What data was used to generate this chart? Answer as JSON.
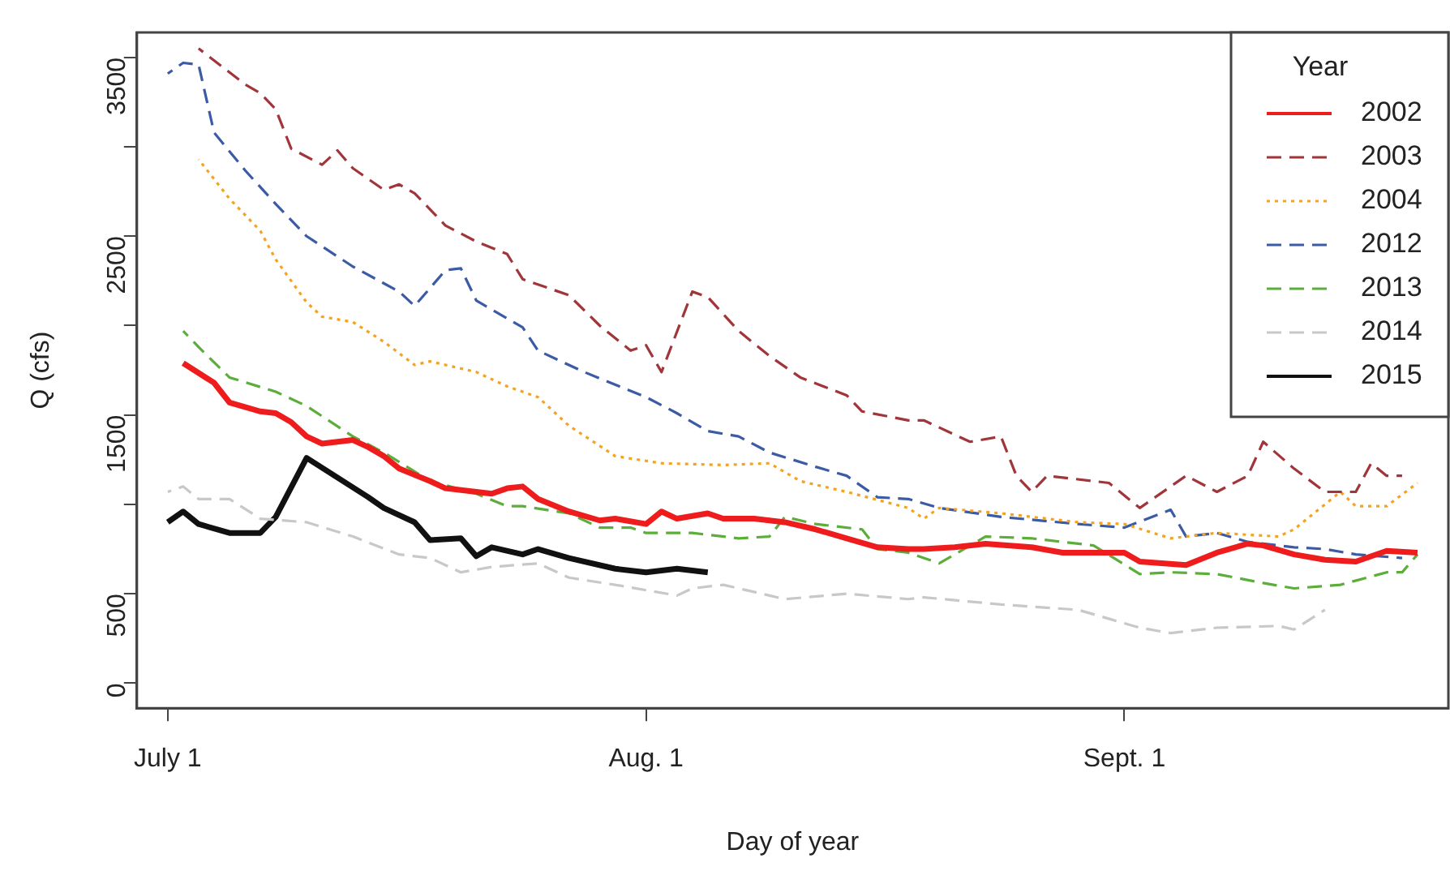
{
  "chart_data": {
    "type": "line",
    "xlabel": "Day of year",
    "ylabel": "Q (cfs)",
    "legend_title": "Year",
    "xlim": [
      "--06-29",
      "--09-22"
    ],
    "ylim": [
      -140,
      3640
    ],
    "xticks": [
      {
        "value": "--07-01",
        "label": "July 1"
      },
      {
        "value": "--08-01",
        "label": "Aug. 1"
      },
      {
        "value": "--09-01",
        "label": "Sept. 1"
      }
    ],
    "yticks": [
      0,
      500,
      {
        "value": 1000,
        "label": null
      },
      1500,
      {
        "value": 2000,
        "label": null
      },
      2500,
      {
        "value": 3000,
        "label": null
      },
      3500
    ],
    "grid": false,
    "legend": "top right",
    "marker": "none",
    "series": [
      {
        "name": "2002",
        "color": "#ee1c1c",
        "line_style": "solid",
        "x": [
          "--07-02",
          "--07-04",
          "--07-05",
          "--07-07",
          "--07-08",
          "--07-09",
          "--07-10",
          "--07-11",
          "--07-12",
          "--07-13",
          "--07-14",
          "--07-15",
          "--07-16",
          "--07-18",
          "--07-19",
          "--07-21",
          "--07-22",
          "--07-23",
          "--07-24",
          "--07-25",
          "--07-27",
          "--07-29",
          "--07-30",
          "--08-01",
          "--08-02",
          "--08-03",
          "--08-05",
          "--08-06",
          "--08-08",
          "--08-10",
          "--08-12",
          "--08-14",
          "--08-16",
          "--08-18",
          "--08-19",
          "--08-21",
          "--08-23",
          "--08-26",
          "--08-28",
          "--08-30",
          "--09-01",
          "--09-02",
          "--09-05",
          "--09-07",
          "--09-09",
          "--09-10",
          "--09-12",
          "--09-14",
          "--09-16",
          "--09-18",
          "--09-20"
        ],
        "values": [
          1790,
          1680,
          1570,
          1520,
          1510,
          1460,
          1380,
          1340,
          1350,
          1360,
          1320,
          1270,
          1200,
          1130,
          1090,
          1070,
          1060,
          1090,
          1100,
          1030,
          960,
          910,
          920,
          890,
          960,
          920,
          950,
          920,
          920,
          900,
          860,
          810,
          760,
          750,
          750,
          760,
          780,
          760,
          730,
          730,
          730,
          680,
          660,
          730,
          780,
          770,
          720,
          690,
          680,
          740,
          730
        ]
      },
      {
        "name": "2003",
        "color": "#a0353a",
        "line_style": "dashed",
        "x": [
          "--07-03",
          "--07-06",
          "--07-07",
          "--07-08",
          "--07-09",
          "--07-11",
          "--07-12",
          "--07-13",
          "--07-15",
          "--07-16",
          "--07-17",
          "--07-19",
          "--07-21",
          "--07-23",
          "--07-24",
          "--07-27",
          "--07-29",
          "--07-31",
          "--08-01",
          "--08-02",
          "--08-04",
          "--08-05",
          "--08-07",
          "--08-09",
          "--08-11",
          "--08-14",
          "--08-15",
          "--08-18",
          "--08-19",
          "--08-22",
          "--08-24",
          "--08-25",
          "--08-26",
          "--08-27",
          "--08-31",
          "--09-02",
          "--09-05",
          "--09-07",
          "--09-09",
          "--09-10",
          "--09-12",
          "--09-14",
          "--09-16",
          "--09-17",
          "--09-18",
          "--09-19"
        ],
        "values": [
          3550,
          3350,
          3300,
          3210,
          2990,
          2900,
          2980,
          2880,
          2760,
          2790,
          2740,
          2560,
          2470,
          2400,
          2260,
          2170,
          2000,
          1860,
          1890,
          1740,
          2190,
          2160,
          1970,
          1830,
          1710,
          1610,
          1520,
          1470,
          1470,
          1350,
          1380,
          1160,
          1070,
          1160,
          1120,
          980,
          1160,
          1070,
          1160,
          1350,
          1200,
          1070,
          1070,
          1230,
          1160,
          1160
        ]
      },
      {
        "name": "2004",
        "color": "#f5a31e",
        "line_style": "dotted",
        "x": [
          "--07-03",
          "--07-05",
          "--07-07",
          "--07-08",
          "--07-10",
          "--07-11",
          "--07-13",
          "--07-15",
          "--07-17",
          "--07-18",
          "--07-21",
          "--07-23",
          "--07-24",
          "--07-25",
          "--07-27",
          "--07-30",
          "--08-02",
          "--08-06",
          "--08-09",
          "--08-11",
          "--08-14",
          "--08-18",
          "--08-19",
          "--08-20",
          "--08-24",
          "--08-29",
          "--09-01",
          "--09-04",
          "--09-07",
          "--09-11",
          "--09-12",
          "--09-15",
          "--09-16",
          "--09-18",
          "--09-20"
        ],
        "values": [
          2930,
          2710,
          2530,
          2370,
          2130,
          2050,
          2020,
          1910,
          1780,
          1800,
          1740,
          1660,
          1630,
          1600,
          1440,
          1270,
          1230,
          1220,
          1230,
          1130,
          1070,
          980,
          920,
          980,
          950,
          900,
          890,
          810,
          840,
          820,
          860,
          1070,
          990,
          990,
          1120
        ]
      },
      {
        "name": "2012",
        "color": "#3b5ba5",
        "line_style": "dashed",
        "x": [
          "--07-01",
          "--07-02",
          "--07-03",
          "--07-04",
          "--07-06",
          "--07-08",
          "--07-10",
          "--07-13",
          "--07-16",
          "--07-17",
          "--07-19",
          "--07-20",
          "--07-21",
          "--07-24",
          "--07-25",
          "--07-28",
          "--08-01",
          "--08-03",
          "--08-05",
          "--08-07",
          "--08-09",
          "--08-12",
          "--08-14",
          "--08-16",
          "--08-18",
          "--08-20",
          "--08-24",
          "--08-29",
          "--09-01",
          "--09-04",
          "--09-05",
          "--09-07",
          "--09-09",
          "--09-12",
          "--09-14",
          "--09-16",
          "--09-19"
        ],
        "values": [
          3410,
          3470,
          3460,
          3080,
          2870,
          2680,
          2500,
          2330,
          2190,
          2110,
          2310,
          2320,
          2140,
          1990,
          1860,
          1740,
          1600,
          1510,
          1410,
          1380,
          1290,
          1210,
          1160,
          1040,
          1030,
          980,
          930,
          890,
          870,
          970,
          820,
          840,
          790,
          760,
          750,
          720,
          700
        ]
      },
      {
        "name": "2013",
        "color": "#5cae3a",
        "line_style": "dashed",
        "x": [
          "--07-02",
          "--07-03",
          "--07-05",
          "--07-08",
          "--07-10",
          "--07-13",
          "--07-15",
          "--07-18",
          "--07-21",
          "--07-23",
          "--07-24",
          "--07-27",
          "--07-29",
          "--07-31",
          "--08-01",
          "--08-04",
          "--08-07",
          "--08-09",
          "--08-10",
          "--08-12",
          "--08-15",
          "--08-16",
          "--08-18",
          "--08-20",
          "--08-23",
          "--08-26",
          "--08-30",
          "--09-02",
          "--09-04",
          "--09-07",
          "--09-10",
          "--09-12",
          "--09-15",
          "--09-18",
          "--09-19",
          "--09-20"
        ],
        "values": [
          1970,
          1880,
          1710,
          1630,
          1550,
          1380,
          1290,
          1130,
          1060,
          990,
          990,
          950,
          870,
          870,
          840,
          840,
          810,
          820,
          930,
          890,
          860,
          750,
          730,
          670,
          820,
          810,
          770,
          610,
          620,
          610,
          560,
          530,
          550,
          620,
          620,
          720
        ]
      },
      {
        "name": "2014",
        "color": "#c8c8c8",
        "line_style": "dashed",
        "x": [
          "--07-01",
          "--07-02",
          "--07-03",
          "--07-05",
          "--07-07",
          "--07-10",
          "--07-13",
          "--07-16",
          "--07-18",
          "--07-20",
          "--07-22",
          "--07-25",
          "--07-27",
          "--07-30",
          "--08-03",
          "--08-04",
          "--08-06",
          "--08-08",
          "--08-10",
          "--08-14",
          "--08-18",
          "--08-19",
          "--08-24",
          "--08-29",
          "--09-02",
          "--09-04",
          "--09-07",
          "--09-11",
          "--09-12",
          "--09-14"
        ],
        "values": [
          1070,
          1100,
          1030,
          1030,
          920,
          900,
          820,
          720,
          700,
          620,
          650,
          670,
          590,
          550,
          490,
          530,
          550,
          510,
          470,
          500,
          470,
          480,
          440,
          410,
          310,
          280,
          310,
          320,
          300,
          410
        ]
      },
      {
        "name": "2015",
        "color": "#111111",
        "line_style": "solid",
        "x": [
          "--07-01",
          "--07-02",
          "--07-03",
          "--07-05",
          "--07-07",
          "--07-08",
          "--07-10",
          "--07-12",
          "--07-14",
          "--07-15",
          "--07-17",
          "--07-18",
          "--07-20",
          "--07-21",
          "--07-22",
          "--07-24",
          "--07-25",
          "--07-27",
          "--07-30",
          "--08-01",
          "--08-03",
          "--08-05"
        ],
        "values": [
          900,
          960,
          890,
          840,
          840,
          930,
          1260,
          1150,
          1040,
          980,
          900,
          800,
          810,
          710,
          760,
          720,
          750,
          700,
          640,
          620,
          640,
          620
        ]
      }
    ]
  }
}
